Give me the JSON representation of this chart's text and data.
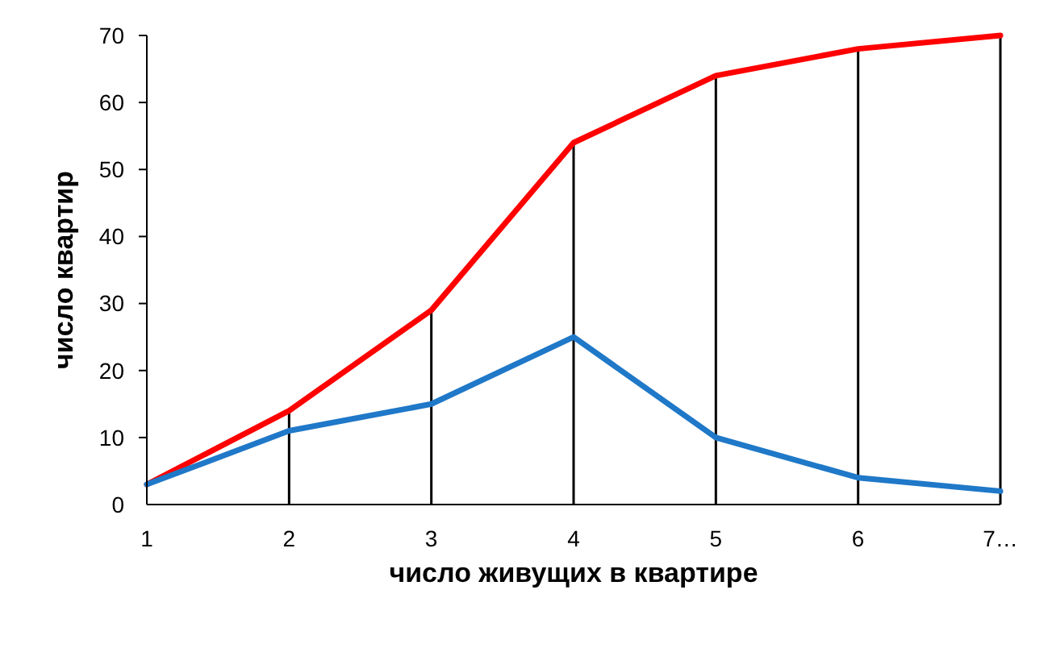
{
  "chart_data": {
    "type": "line",
    "xlabel": "число живущих в квартире",
    "ylabel": "число квартир",
    "x": [
      1,
      2,
      3,
      4,
      5,
      6,
      7
    ],
    "series": [
      {
        "type": "bar",
        "color": "#000000",
        "x": [
          2,
          3,
          4,
          5,
          6,
          7
        ],
        "values": [
          14,
          29,
          54,
          64,
          68,
          70
        ]
      },
      {
        "color": "#ff0000",
        "values": [
          3,
          14,
          29,
          54,
          64,
          68,
          70
        ]
      },
      {
        "color": "#1f78c8",
        "values": [
          3,
          11,
          15,
          25,
          10,
          4,
          2
        ]
      }
    ],
    "xlim": [
      1,
      7
    ],
    "xticks": [
      1,
      2,
      3,
      4,
      5,
      6,
      {
        "value": 7,
        "label": "7…"
      }
    ],
    "ylim": [
      0,
      70
    ],
    "yticks": [
      0,
      10,
      20,
      30,
      40,
      50,
      60,
      70
    ],
    "grid": false,
    "line_style": "solid"
  }
}
